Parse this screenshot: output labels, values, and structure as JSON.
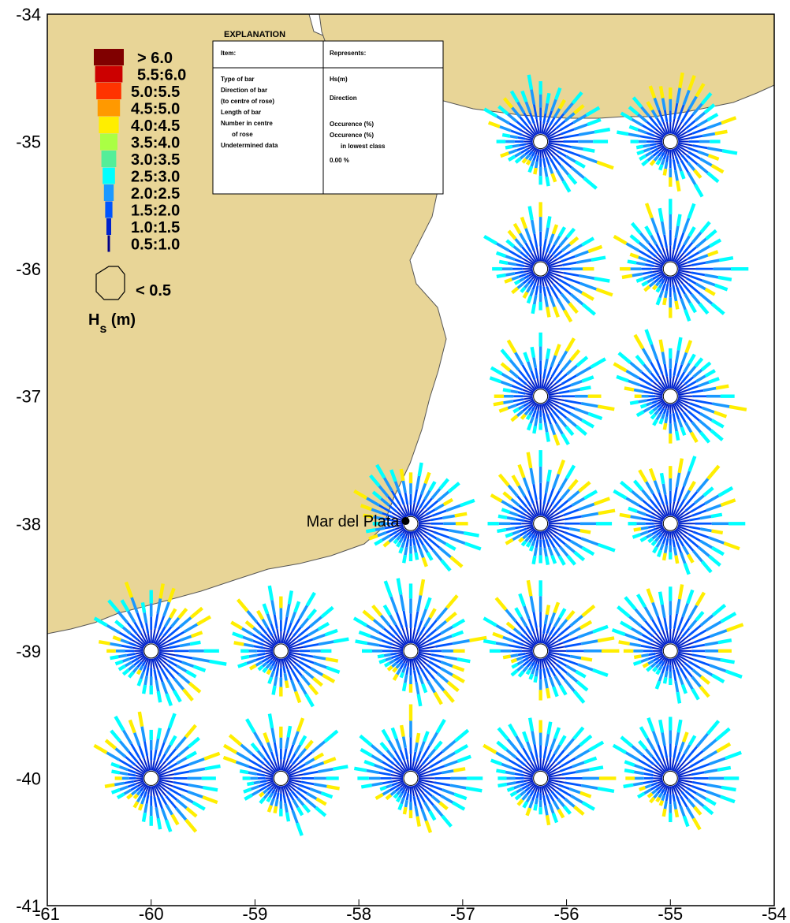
{
  "axes": {
    "x_ticks": [
      "-61",
      "-60",
      "-59",
      "-58",
      "-57",
      "-56",
      "-55",
      "-54"
    ],
    "y_ticks": [
      "-34",
      "-35",
      "-36",
      "-37",
      "-38",
      "-39",
      "-40",
      "-41"
    ],
    "xlim": [
      -61,
      -54
    ],
    "ylim": [
      -41,
      -34
    ]
  },
  "colors": {
    "land": "#e8d597",
    "coast": "#555555",
    "sea": "#ffffff"
  },
  "legend": {
    "classes": [
      {
        "label": "> 6.0",
        "color": "#800000"
      },
      {
        "label": "5.5:6.0",
        "color": "#cc0000"
      },
      {
        "label": "5.0:5.5",
        "color": "#ff3300"
      },
      {
        "label": "4.5:5.0",
        "color": "#ff9900"
      },
      {
        "label": "4.0:4.5",
        "color": "#ffee00"
      },
      {
        "label": "3.5:4.0",
        "color": "#aaff44"
      },
      {
        "label": "3.0:3.5",
        "color": "#55ee99"
      },
      {
        "label": "2.5:3.0",
        "color": "#00ffff"
      },
      {
        "label": "2.0:2.5",
        "color": "#1a99ff"
      },
      {
        "label": "1.5:2.0",
        "color": "#0055ff"
      },
      {
        "label": "1.0:1.5",
        "color": "#0022cc"
      },
      {
        "label": "0.5:1.0",
        "color": "#000088"
      }
    ],
    "calm_label": "< 0.5",
    "unit_label_main": "H",
    "unit_label_sub": "s",
    "unit_label_tail": " (m)"
  },
  "explanation": {
    "title": "EXPLANATION",
    "col1_header": "Item:",
    "col2_header": "Represents:",
    "items": [
      "Type of bar",
      "Direction of bar",
      "(to centre of rose)",
      "Length of bar",
      "Number in centre",
      "of rose",
      "Undetermined data"
    ],
    "reps": [
      "Hs(m)",
      "Direction",
      "",
      "Occurence (%)",
      "Occurence (%)",
      "in lowest class",
      "0.00 %"
    ]
  },
  "place": {
    "name": "Mar del Plata",
    "lon": -57.55,
    "lat": -37.98
  },
  "roses": [
    {
      "lon": -56.25,
      "lat": -35.0
    },
    {
      "lon": -55.0,
      "lat": -35.0
    },
    {
      "lon": -56.25,
      "lat": -36.0
    },
    {
      "lon": -55.0,
      "lat": -36.0
    },
    {
      "lon": -56.25,
      "lat": -37.0
    },
    {
      "lon": -55.0,
      "lat": -37.0
    },
    {
      "lon": -57.5,
      "lat": -38.0
    },
    {
      "lon": -56.25,
      "lat": -38.0
    },
    {
      "lon": -55.0,
      "lat": -38.0
    },
    {
      "lon": -60.0,
      "lat": -39.0
    },
    {
      "lon": -58.75,
      "lat": -39.0
    },
    {
      "lon": -57.5,
      "lat": -39.0
    },
    {
      "lon": -56.25,
      "lat": -39.0
    },
    {
      "lon": -55.0,
      "lat": -39.0
    },
    {
      "lon": -60.0,
      "lat": -40.0
    },
    {
      "lon": -58.75,
      "lat": -40.0
    },
    {
      "lon": -57.5,
      "lat": -40.0
    },
    {
      "lon": -56.25,
      "lat": -40.0
    },
    {
      "lon": -55.0,
      "lat": -40.0
    }
  ]
}
